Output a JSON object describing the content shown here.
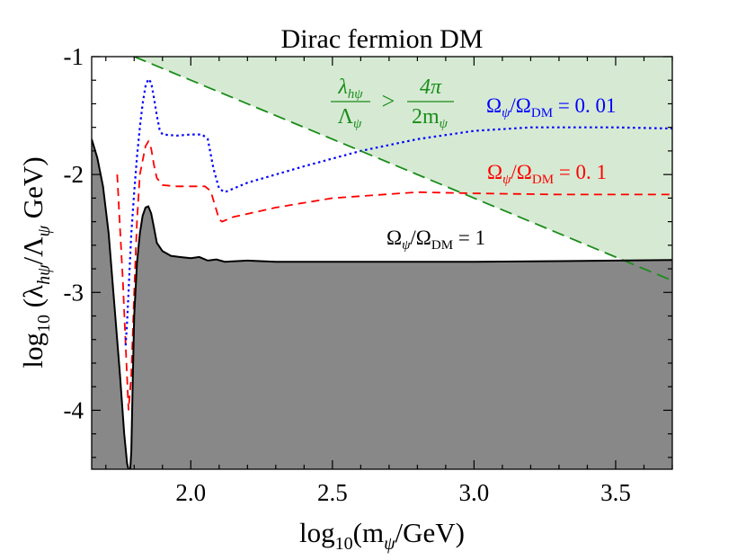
{
  "chart_data": {
    "type": "line",
    "title": "Dirac fermion DM",
    "xlabel": {
      "pre": "log",
      "sub": "10",
      "post": "(m",
      "var_sub": "ψ",
      "tail": "/GeV)"
    },
    "ylabel": {
      "pre": "log",
      "sub": "10",
      "post": " (λ",
      "s1": "hψ",
      "mid": "/Λ",
      "s2": "ψ",
      "tail": " GeV)"
    },
    "xlim": [
      1.65,
      3.7
    ],
    "ylim": [
      -4.5,
      -1.0
    ],
    "x_ticks": [
      {
        "value": 2.0,
        "label": "2.0"
      },
      {
        "value": 2.5,
        "label": "2.5"
      },
      {
        "value": 3.0,
        "label": "3.0"
      },
      {
        "value": 3.5,
        "label": "3.5"
      }
    ],
    "y_ticks": [
      {
        "value": -1,
        "label": "-1"
      },
      {
        "value": -2,
        "label": "-2"
      },
      {
        "value": -3,
        "label": "-3"
      },
      {
        "value": -4,
        "label": "-4"
      }
    ],
    "x_minor_step": 0.1,
    "y_minor_step": 0.2,
    "colors": {
      "excluded": "#888888",
      "bound_fill": "#d6ead3",
      "bound_line": "#1a8c1a",
      "omega_001": "#0000ff",
      "omega_01": "#ff0000",
      "omega_1": "#000000"
    },
    "series": [
      {
        "name": "Omega_psi/Omega_DM = 1",
        "style": "solid",
        "color": "#000000",
        "x": [
          1.65,
          1.67,
          1.69,
          1.71,
          1.73,
          1.75,
          1.765,
          1.775,
          1.785,
          1.79,
          1.795,
          1.8,
          1.81,
          1.82,
          1.83,
          1.84,
          1.85,
          1.86,
          1.87,
          1.88,
          1.9,
          1.93,
          1.96,
          2.0,
          2.03,
          2.06,
          2.09,
          2.12,
          2.2,
          2.3,
          2.5,
          2.8,
          3.0,
          3.3,
          3.7
        ],
        "y": [
          -1.7,
          -1.86,
          -2.1,
          -2.5,
          -3.1,
          -3.7,
          -4.2,
          -4.45,
          -4.55,
          -4.35,
          -3.75,
          -3.2,
          -2.75,
          -2.5,
          -2.35,
          -2.28,
          -2.27,
          -2.33,
          -2.45,
          -2.58,
          -2.65,
          -2.69,
          -2.7,
          -2.71,
          -2.7,
          -2.73,
          -2.72,
          -2.74,
          -2.73,
          -2.74,
          -2.74,
          -2.74,
          -2.74,
          -2.735,
          -2.725
        ]
      },
      {
        "name": "Omega_psi/Omega_DM = 0.1",
        "style": "dashed",
        "color": "#ff0000",
        "x": [
          1.74,
          1.75,
          1.76,
          1.77,
          1.78,
          1.79,
          1.8,
          1.81,
          1.82,
          1.84,
          1.85,
          1.86,
          1.87,
          1.88,
          1.9,
          1.95,
          2.0,
          2.05,
          2.07,
          2.09,
          2.1,
          2.11,
          2.15,
          2.3,
          2.5,
          2.8,
          3.0,
          3.3,
          3.7
        ],
        "y": [
          -2.0,
          -2.45,
          -2.9,
          -3.45,
          -4.0,
          -3.7,
          -3.0,
          -2.4,
          -2.0,
          -1.76,
          -1.72,
          -1.78,
          -1.92,
          -2.03,
          -2.09,
          -2.1,
          -2.1,
          -2.1,
          -2.14,
          -2.3,
          -2.38,
          -2.4,
          -2.36,
          -2.28,
          -2.2,
          -2.15,
          -2.16,
          -2.17,
          -2.17
        ]
      },
      {
        "name": "Omega_psi/Omega_DM = 0.01",
        "style": "dotted",
        "color": "#0000ff",
        "x": [
          1.77,
          1.775,
          1.78,
          1.785,
          1.79,
          1.8,
          1.81,
          1.82,
          1.83,
          1.84,
          1.85,
          1.86,
          1.87,
          1.88,
          1.89,
          1.9,
          1.95,
          2.0,
          2.04,
          2.06,
          2.08,
          2.1,
          2.12,
          2.2,
          2.4,
          2.6,
          2.8,
          3.0,
          3.2,
          3.5,
          3.7
        ],
        "y": [
          -3.45,
          -3.25,
          -3.0,
          -2.75,
          -2.5,
          -2.15,
          -1.85,
          -1.6,
          -1.4,
          -1.25,
          -1.19,
          -1.22,
          -1.35,
          -1.5,
          -1.62,
          -1.66,
          -1.67,
          -1.66,
          -1.66,
          -1.7,
          -1.95,
          -2.12,
          -2.15,
          -2.07,
          -1.93,
          -1.8,
          -1.7,
          -1.63,
          -1.6,
          -1.6,
          -1.61
        ]
      },
      {
        "name": "perturbativity bound",
        "style": "longdash",
        "color": "#1a8c1a",
        "x": [
          1.8,
          3.7
        ],
        "y": [
          -1.0,
          -2.9
        ]
      }
    ],
    "annotations": {
      "bound": {
        "lhs_num": "λ",
        "lhs_num_sub": "hψ",
        "lhs_den": "Λ",
        "lhs_den_sub": "ψ",
        "op": ">",
        "rhs_num": "4π",
        "rhs_den": "2m",
        "rhs_den_sub": "ψ"
      },
      "omega_001": {
        "a": "Ω",
        "a_sub": "ψ",
        "slash": "/Ω",
        "b_sub": "DM",
        "eq": " = 0. 01"
      },
      "omega_01": {
        "a": "Ω",
        "a_sub": "ψ",
        "slash": "/Ω",
        "b_sub": "DM",
        "eq": " = 0. 1"
      },
      "omega_1": {
        "a": "Ω",
        "a_sub": "ψ",
        "slash": "/Ω",
        "b_sub": "DM",
        "eq": " = 1"
      }
    }
  }
}
